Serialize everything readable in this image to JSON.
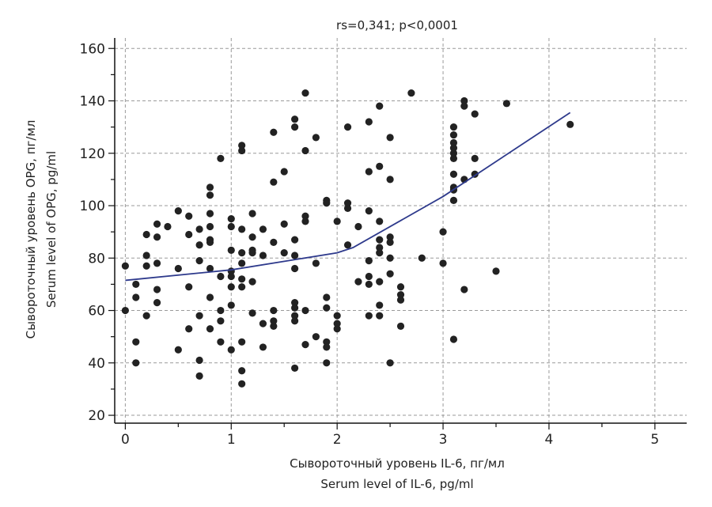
{
  "chart_data": {
    "type": "scatter",
    "title": "rs=0,341; p<0,0001",
    "xlabel": [
      "Сывороточный уровень IL-6, пг/мл",
      "Serum level of IL-6, pg/ml"
    ],
    "ylabel": [
      "Сывороточный уровень OPG, пг/мл",
      "Serum level of OPG, pg/ml"
    ],
    "xlim": [
      -0.1,
      5.3
    ],
    "ylim": [
      17,
      164
    ],
    "xticks": [
      0,
      1,
      2,
      3,
      4,
      5
    ],
    "xtick_labels": [
      "0",
      "1",
      "2",
      "3",
      "4",
      "5"
    ],
    "yticks": [
      20,
      40,
      60,
      80,
      100,
      120,
      140,
      160
    ],
    "ytick_labels": [
      "20",
      "40",
      "60",
      "80",
      "100",
      "120",
      "140",
      "160"
    ],
    "grid": true,
    "colors": {
      "points": "#222222",
      "trend": "#2e3a8c",
      "grid": "#9a9a9a",
      "axis": "#111111"
    },
    "points": [
      [
        0,
        77
      ],
      [
        0,
        60
      ],
      [
        0.1,
        70
      ],
      [
        0.1,
        65
      ],
      [
        0.1,
        48
      ],
      [
        0.1,
        40
      ],
      [
        0.2,
        89
      ],
      [
        0.2,
        81
      ],
      [
        0.2,
        77
      ],
      [
        0.2,
        58
      ],
      [
        0.3,
        93
      ],
      [
        0.3,
        88
      ],
      [
        0.3,
        78
      ],
      [
        0.3,
        68
      ],
      [
        0.3,
        63
      ],
      [
        0.4,
        92
      ],
      [
        0.5,
        98
      ],
      [
        0.5,
        76
      ],
      [
        0.5,
        45
      ],
      [
        0.6,
        96
      ],
      [
        0.6,
        89
      ],
      [
        0.6,
        69
      ],
      [
        0.6,
        53
      ],
      [
        0.7,
        91
      ],
      [
        0.7,
        85
      ],
      [
        0.7,
        79
      ],
      [
        0.7,
        58
      ],
      [
        0.7,
        41
      ],
      [
        0.7,
        35
      ],
      [
        0.8,
        107
      ],
      [
        0.8,
        104
      ],
      [
        0.8,
        97
      ],
      [
        0.8,
        92
      ],
      [
        0.8,
        87
      ],
      [
        0.8,
        86
      ],
      [
        0.8,
        76
      ],
      [
        0.8,
        65
      ],
      [
        0.8,
        53
      ],
      [
        0.9,
        118
      ],
      [
        0.9,
        73
      ],
      [
        0.9,
        60
      ],
      [
        0.9,
        56
      ],
      [
        0.9,
        48
      ],
      [
        1.0,
        95
      ],
      [
        1.0,
        92
      ],
      [
        1.0,
        83
      ],
      [
        1.0,
        75
      ],
      [
        1.0,
        73
      ],
      [
        1.0,
        69
      ],
      [
        1.0,
        62
      ],
      [
        1.0,
        45
      ],
      [
        1.1,
        123
      ],
      [
        1.1,
        121
      ],
      [
        1.1,
        91
      ],
      [
        1.1,
        82
      ],
      [
        1.1,
        78
      ],
      [
        1.1,
        72
      ],
      [
        1.1,
        69
      ],
      [
        1.1,
        48
      ],
      [
        1.1,
        37
      ],
      [
        1.1,
        32
      ],
      [
        1.2,
        97
      ],
      [
        1.2,
        88
      ],
      [
        1.2,
        83
      ],
      [
        1.2,
        82
      ],
      [
        1.2,
        71
      ],
      [
        1.2,
        59
      ],
      [
        1.3,
        91
      ],
      [
        1.3,
        81
      ],
      [
        1.3,
        55
      ],
      [
        1.3,
        46
      ],
      [
        1.4,
        128
      ],
      [
        1.4,
        109
      ],
      [
        1.4,
        86
      ],
      [
        1.4,
        60
      ],
      [
        1.4,
        56
      ],
      [
        1.4,
        54
      ],
      [
        1.5,
        113
      ],
      [
        1.5,
        93
      ],
      [
        1.5,
        82
      ],
      [
        1.6,
        133
      ],
      [
        1.6,
        130
      ],
      [
        1.6,
        87
      ],
      [
        1.6,
        81
      ],
      [
        1.6,
        76
      ],
      [
        1.6,
        63
      ],
      [
        1.6,
        61
      ],
      [
        1.6,
        58
      ],
      [
        1.6,
        56
      ],
      [
        1.6,
        38
      ],
      [
        1.7,
        143
      ],
      [
        1.7,
        121
      ],
      [
        1.7,
        96
      ],
      [
        1.7,
        94
      ],
      [
        1.7,
        60
      ],
      [
        1.7,
        47
      ],
      [
        1.8,
        126
      ],
      [
        1.8,
        78
      ],
      [
        1.8,
        50
      ],
      [
        1.9,
        102
      ],
      [
        1.9,
        101
      ],
      [
        1.9,
        65
      ],
      [
        1.9,
        61
      ],
      [
        1.9,
        48
      ],
      [
        1.9,
        46
      ],
      [
        1.9,
        40
      ],
      [
        2.0,
        94
      ],
      [
        2.0,
        58
      ],
      [
        2.0,
        55
      ],
      [
        2.0,
        53
      ],
      [
        2.1,
        130
      ],
      [
        2.1,
        101
      ],
      [
        2.1,
        99
      ],
      [
        2.1,
        85
      ],
      [
        2.2,
        92
      ],
      [
        2.2,
        71
      ],
      [
        2.3,
        132
      ],
      [
        2.3,
        113
      ],
      [
        2.3,
        98
      ],
      [
        2.3,
        79
      ],
      [
        2.3,
        73
      ],
      [
        2.3,
        70
      ],
      [
        2.3,
        58
      ],
      [
        2.4,
        138
      ],
      [
        2.4,
        115
      ],
      [
        2.4,
        94
      ],
      [
        2.4,
        87
      ],
      [
        2.4,
        84
      ],
      [
        2.4,
        82
      ],
      [
        2.4,
        71
      ],
      [
        2.4,
        62
      ],
      [
        2.4,
        58
      ],
      [
        2.5,
        126
      ],
      [
        2.5,
        110
      ],
      [
        2.5,
        88
      ],
      [
        2.5,
        86
      ],
      [
        2.5,
        80
      ],
      [
        2.5,
        74
      ],
      [
        2.5,
        40
      ],
      [
        2.6,
        69
      ],
      [
        2.6,
        66
      ],
      [
        2.6,
        64
      ],
      [
        2.6,
        54
      ],
      [
        2.7,
        143
      ],
      [
        2.8,
        80
      ],
      [
        3.0,
        90
      ],
      [
        3.0,
        78
      ],
      [
        3.1,
        130
      ],
      [
        3.1,
        127
      ],
      [
        3.1,
        124
      ],
      [
        3.1,
        122
      ],
      [
        3.1,
        120
      ],
      [
        3.1,
        118
      ],
      [
        3.1,
        112
      ],
      [
        3.1,
        107
      ],
      [
        3.1,
        106
      ],
      [
        3.1,
        102
      ],
      [
        3.1,
        49
      ],
      [
        3.2,
        140
      ],
      [
        3.2,
        138
      ],
      [
        3.2,
        110
      ],
      [
        3.2,
        68
      ],
      [
        3.3,
        135
      ],
      [
        3.3,
        118
      ],
      [
        3.3,
        112
      ],
      [
        3.5,
        75
      ],
      [
        3.6,
        139
      ],
      [
        4.2,
        131
      ]
    ],
    "trend_line": [
      [
        0,
        71.5
      ],
      [
        1,
        75.5
      ],
      [
        2,
        82
      ],
      [
        2.15,
        84
      ],
      [
        3,
        103.5
      ],
      [
        4.2,
        135.5
      ]
    ]
  }
}
